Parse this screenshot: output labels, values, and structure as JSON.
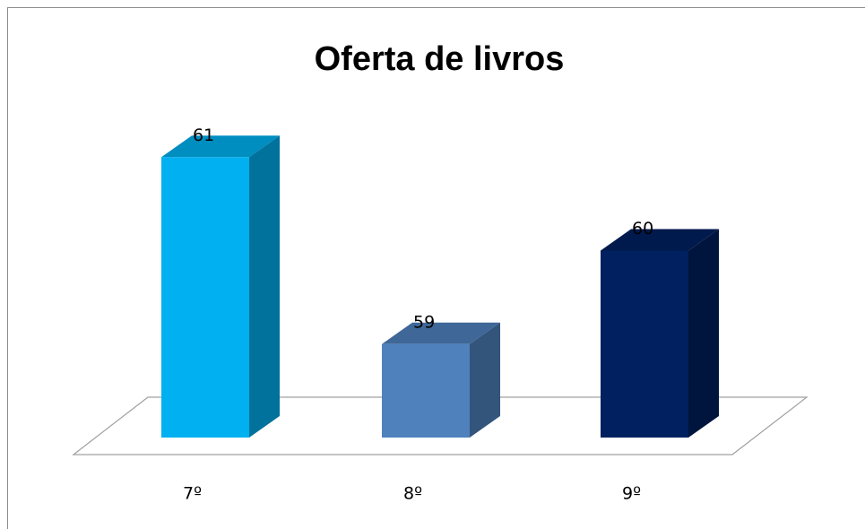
{
  "chart_data": {
    "type": "bar3d",
    "title": "Oferta de livros",
    "categories": [
      "7º",
      "8º",
      "9º"
    ],
    "values": [
      61,
      59,
      60
    ],
    "colors": [
      "#00b0f0",
      "#4f81bd",
      "#002060"
    ],
    "ylim": [
      58,
      62
    ]
  }
}
